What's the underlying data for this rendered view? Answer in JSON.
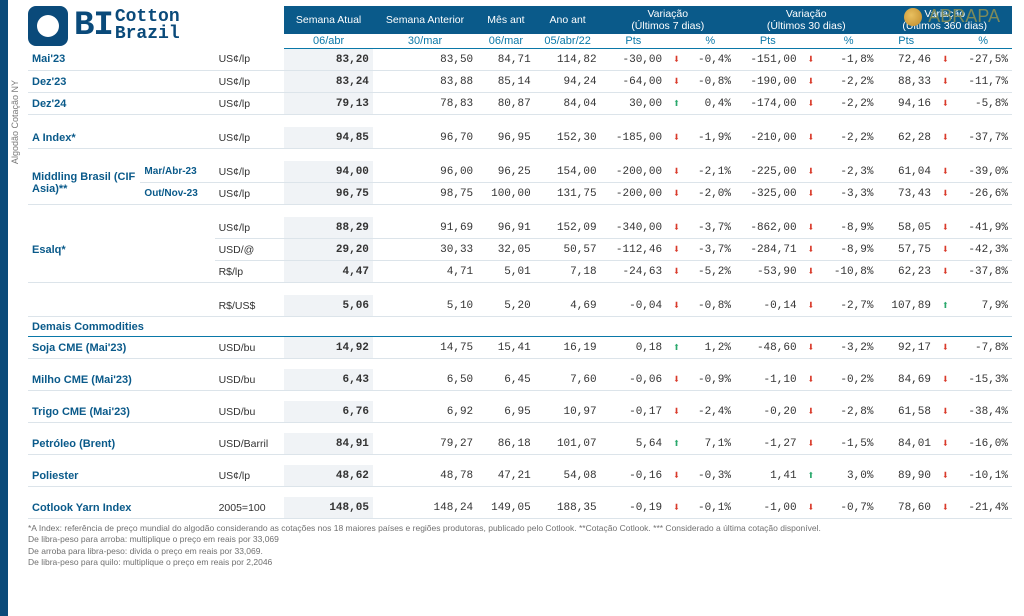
{
  "meta": {
    "side_label": "Algodão Cotação NY",
    "abrapa": "ABRAPA",
    "bi": "BI",
    "cotton": "Cotton",
    "brazil": "Brazil"
  },
  "headers": {
    "semana_atual": "Semana Atual",
    "semana_ant": "Semana Anterior",
    "mes_ant": "Mês ant",
    "ano_ant": "Ano ant",
    "var7": "Variação",
    "var7_sub": "(Últimos 7 dias)",
    "var30": "Variação",
    "var30_sub": "(Últimos 30 dias)",
    "var360": "Variação",
    "var360_sub": "(Últimos 360 dias)",
    "d1": "06/abr",
    "d2": "30/mar",
    "d3": "06/mar",
    "d4": "05/abr/22",
    "pts": "Pts",
    "pct": "%"
  },
  "section": {
    "demais": "Demais Commodities"
  },
  "rows": [
    {
      "label": "Mai'23",
      "unit": "US¢/lp",
      "v": [
        "83,20",
        "83,50",
        "84,71",
        "114,82"
      ],
      "c7": [
        "-30,00",
        "-0,4%",
        "dn"
      ],
      "c30": [
        "-151,00",
        "-1,8%",
        "dn"
      ],
      "c360": [
        "72,46",
        "-27,5%",
        "dn"
      ]
    },
    {
      "label": "Dez'23",
      "unit": "US¢/lp",
      "v": [
        "83,24",
        "83,88",
        "85,14",
        "94,24"
      ],
      "c7": [
        "-64,00",
        "-0,8%",
        "dn"
      ],
      "c30": [
        "-190,00",
        "-2,2%",
        "dn"
      ],
      "c360": [
        "88,33",
        "-11,7%",
        "dn"
      ]
    },
    {
      "label": "Dez'24",
      "unit": "US¢/lp",
      "v": [
        "79,13",
        "78,83",
        "80,87",
        "84,04"
      ],
      "c7": [
        "30,00",
        "0,4%",
        "up"
      ],
      "c30": [
        "-174,00",
        "-2,2%",
        "dn"
      ],
      "c360": [
        "94,16",
        "-5,8%",
        "dn"
      ]
    },
    {
      "label": "A Index*",
      "unit": "US¢/lp",
      "v": [
        "94,85",
        "96,70",
        "96,95",
        "152,30"
      ],
      "c7": [
        "-185,00",
        "-1,9%",
        "dn"
      ],
      "c30": [
        "-210,00",
        "-2,2%",
        "dn"
      ],
      "c360": [
        "62,28",
        "-37,7%",
        "dn"
      ],
      "gap": true
    },
    {
      "label_multi": "Middling Brasil (CIF Asia)**",
      "sub1": "Mar/Abr-23",
      "unit": "US¢/lp",
      "v": [
        "94,00",
        "96,00",
        "96,25",
        "154,00"
      ],
      "c7": [
        "-200,00",
        "-2,1%",
        "dn"
      ],
      "c30": [
        "-225,00",
        "-2,3%",
        "dn"
      ],
      "c360": [
        "61,04",
        "-39,0%",
        "dn"
      ],
      "gap": true,
      "rowspan_start": true
    },
    {
      "sub2": "Out/Nov-23",
      "unit": "US¢/lp",
      "v": [
        "96,75",
        "98,75",
        "100,00",
        "131,75"
      ],
      "c7": [
        "-200,00",
        "-2,0%",
        "dn"
      ],
      "c30": [
        "-325,00",
        "-3,3%",
        "dn"
      ],
      "c360": [
        "73,43",
        "-26,6%",
        "dn"
      ]
    },
    {
      "label_multi": "Esalq*",
      "unit": "US¢/lp",
      "v": [
        "88,29",
        "91,69",
        "96,91",
        "152,09"
      ],
      "c7": [
        "-340,00",
        "-3,7%",
        "dn"
      ],
      "c30": [
        "-862,00",
        "-8,9%",
        "dn"
      ],
      "c360": [
        "58,05",
        "-41,9%",
        "dn"
      ],
      "gap": true,
      "rowspan3": true
    },
    {
      "unit": "USD/@",
      "v": [
        "29,20",
        "30,33",
        "32,05",
        "50,57"
      ],
      "c7": [
        "-112,46",
        "-3,7%",
        "dn"
      ],
      "c30": [
        "-284,71",
        "-8,9%",
        "dn"
      ],
      "c360": [
        "57,75",
        "-42,3%",
        "dn"
      ]
    },
    {
      "unit": "R$/lp",
      "v": [
        "4,47",
        "4,71",
        "5,01",
        "7,18"
      ],
      "c7": [
        "-24,63",
        "-5,2%",
        "dn"
      ],
      "c30": [
        "-53,90",
        "-10,8%",
        "dn"
      ],
      "c360": [
        "62,23",
        "-37,8%",
        "dn"
      ]
    },
    {
      "unit": "R$/US$",
      "v": [
        "5,06",
        "5,10",
        "5,20",
        "4,69"
      ],
      "c7": [
        "-0,04",
        "-0,8%",
        "dn"
      ],
      "c30": [
        "-0,14",
        "-2,7%",
        "dn"
      ],
      "c360": [
        "107,89",
        "7,9%",
        "up"
      ],
      "gap": true
    }
  ],
  "rows2": [
    {
      "label": "Soja CME",
      "contract": "(Mai'23)",
      "unit": "USD/bu",
      "v": [
        "14,92",
        "14,75",
        "15,41",
        "16,19"
      ],
      "c7": [
        "0,18",
        "1,2%",
        "up"
      ],
      "c30": [
        "-48,60",
        "-3,2%",
        "dn"
      ],
      "c360": [
        "92,17",
        "-7,8%",
        "dn"
      ]
    },
    {
      "label": "Milho CME",
      "contract": "(Mai'23)",
      "unit": "USD/bu",
      "v": [
        "6,43",
        "6,50",
        "6,45",
        "7,60"
      ],
      "c7": [
        "-0,06",
        "-0,9%",
        "dn"
      ],
      "c30": [
        "-1,10",
        "-0,2%",
        "dn"
      ],
      "c360": [
        "84,69",
        "-15,3%",
        "dn"
      ]
    },
    {
      "label": "Trigo CME",
      "contract": "(Mai'23)",
      "unit": "USD/bu",
      "v": [
        "6,76",
        "6,92",
        "6,95",
        "10,97"
      ],
      "c7": [
        "-0,17",
        "-2,4%",
        "dn"
      ],
      "c30": [
        "-0,20",
        "-2,8%",
        "dn"
      ],
      "c360": [
        "61,58",
        "-38,4%",
        "dn"
      ]
    },
    {
      "label": "Petróleo (Brent)",
      "unit": "USD/Barril",
      "v": [
        "84,91",
        "79,27",
        "86,18",
        "101,07"
      ],
      "c7": [
        "5,64",
        "7,1%",
        "up"
      ],
      "c30": [
        "-1,27",
        "-1,5%",
        "dn"
      ],
      "c360": [
        "84,01",
        "-16,0%",
        "dn"
      ]
    },
    {
      "label": "Poliester",
      "unit": "US¢/lp",
      "v": [
        "48,62",
        "48,78",
        "47,21",
        "54,08"
      ],
      "c7": [
        "-0,16",
        "-0,3%",
        "dn"
      ],
      "c30": [
        "1,41",
        "3,0%",
        "up"
      ],
      "c360": [
        "89,90",
        "-10,1%",
        "dn"
      ]
    },
    {
      "label": "Cotlook Yarn Index",
      "unit": "2005=100",
      "v": [
        "148,05",
        "148,24",
        "149,05",
        "188,35"
      ],
      "c7": [
        "-0,19",
        "-0,1%",
        "dn"
      ],
      "c30": [
        "-1,00",
        "-0,7%",
        "dn"
      ],
      "c360": [
        "78,60",
        "-21,4%",
        "dn"
      ]
    }
  ],
  "foot": [
    "*A Index: referência de preço mundial do algodão considerando as cotações nos 18 maiores países e regiões produtoras, publicado pelo Cotlook. **Cotação Cotlook. *** Considerado a última cotação disponível.",
    "De libra-peso para arroba: multiplique o preço em reais por 33,069",
    "De arroba para libra-peso: divida o preço em reais por 33,069.",
    "De libra-peso para quilo: multiplique o preço em reais por 2,2046"
  ]
}
